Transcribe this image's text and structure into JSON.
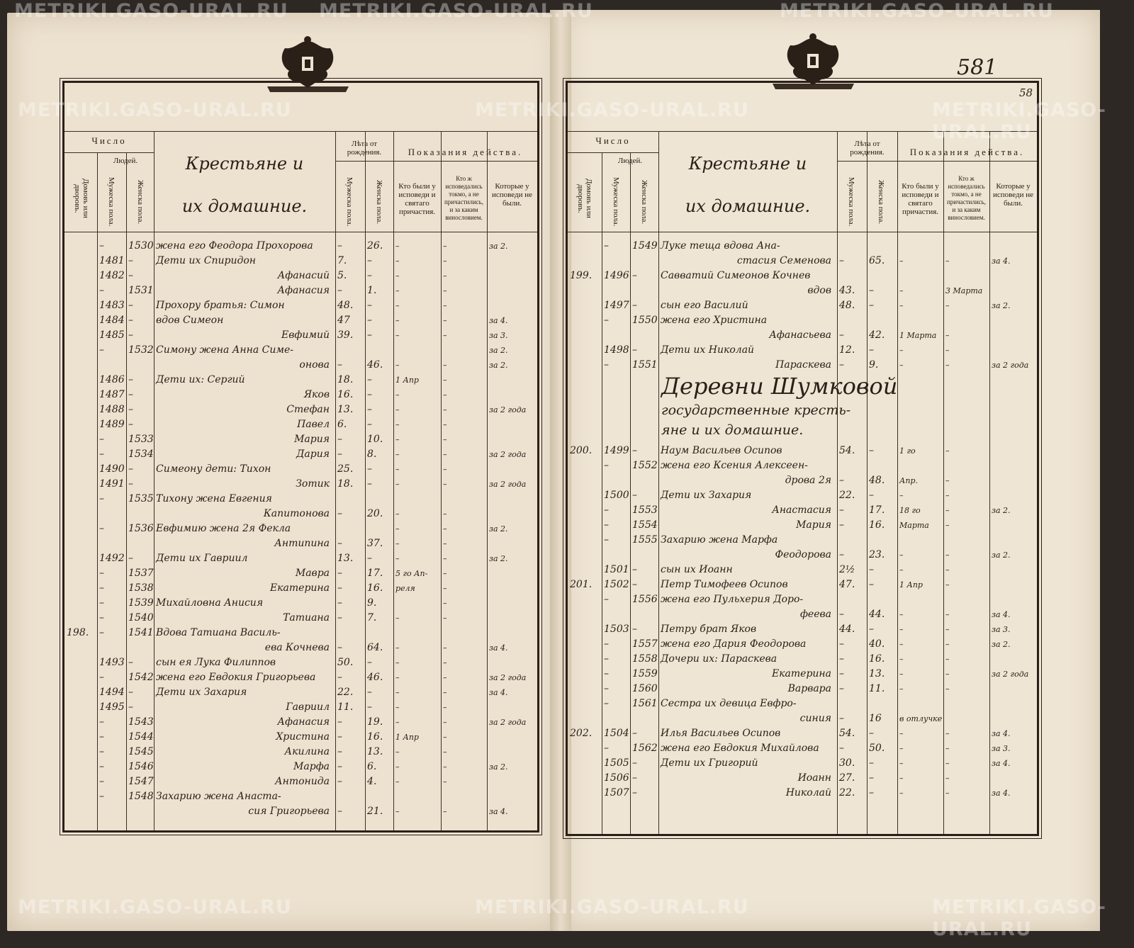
{
  "watermark": "METRIKI.GASO-URAL.RU",
  "page_number": "581",
  "page_number_small": "58",
  "header": {
    "chislo": "Число",
    "lyudey": "Людей.",
    "domov": "Домовъ или дворовъ.",
    "muzheska": "Мужеска пола.",
    "zhenska": "Женска пола.",
    "title_line1": "Крестьяне и",
    "title_line2": "их домашние.",
    "leta": "Лѣта от рождения.",
    "leta_m": "Мужеска пола.",
    "leta_f": "Женска пола.",
    "pokazania": "Показания действа.",
    "col1": "Кто были у исповеди и святаго причастия.",
    "col2": "Кто ж исповедались токмо, а не причастились, и за каким винословием.",
    "col3": "Которые у исповеди не были."
  },
  "left_rows": [
    [
      "",
      "–",
      "1530",
      "жена его Феодора Прохорова",
      "–",
      "26.",
      "–",
      "–",
      "за 2."
    ],
    [
      "",
      "1481",
      "–",
      "Дети их Спиридон",
      "7.",
      "–",
      "–",
      "–",
      ""
    ],
    [
      "",
      "1482",
      "–",
      "Афанасий",
      "5.",
      "–",
      "–",
      "–",
      ""
    ],
    [
      "",
      "–",
      "1531",
      "Афанасия",
      "–",
      "1.",
      "–",
      "–",
      ""
    ],
    [
      "",
      "1483",
      "–",
      "Прохору братья: Симон",
      "48.",
      "–",
      "–",
      "–",
      ""
    ],
    [
      "",
      "1484",
      "–",
      "вдов Симеон",
      "47",
      "–",
      "–",
      "–",
      "за 4."
    ],
    [
      "",
      "1485",
      "–",
      "Евфимий",
      "39.",
      "–",
      "–",
      "–",
      "за 3."
    ],
    [
      "",
      "–",
      "1532",
      "Симону жена Анна Симе-",
      "",
      "",
      "",
      "",
      "за 2."
    ],
    [
      "",
      "",
      "",
      "онова",
      "–",
      "46.",
      "–",
      "–",
      "за 2."
    ],
    [
      "",
      "1486",
      "–",
      "Дети их: Сергий",
      "18.",
      "–",
      "1 Апр",
      "–",
      ""
    ],
    [
      "",
      "1487",
      "–",
      "Яков",
      "16.",
      "–",
      "–",
      "–",
      ""
    ],
    [
      "",
      "1488",
      "–",
      "Стефан",
      "13.",
      "–",
      "–",
      "–",
      "за 2 года"
    ],
    [
      "",
      "1489",
      "–",
      "Павел",
      "6.",
      "–",
      "–",
      "–",
      ""
    ],
    [
      "",
      "–",
      "1533",
      "Мария",
      "–",
      "10.",
      "–",
      "–",
      ""
    ],
    [
      "",
      "–",
      "1534",
      "Дария",
      "–",
      "8.",
      "–",
      "–",
      "за 2 года"
    ],
    [
      "",
      "1490",
      "–",
      "Симеону дети: Тихон",
      "25.",
      "–",
      "–",
      "–",
      ""
    ],
    [
      "",
      "1491",
      "–",
      "Зотик",
      "18.",
      "–",
      "–",
      "–",
      "за 2 года"
    ],
    [
      "",
      "–",
      "1535",
      "Тихону жена Евгения",
      "",
      "",
      "",
      "",
      ""
    ],
    [
      "",
      "",
      "",
      "Капитонова",
      "–",
      "20.",
      "–",
      "–",
      ""
    ],
    [
      "",
      "–",
      "1536",
      "Евфимию жена 2я Фекла",
      "",
      "",
      "–",
      "–",
      "за 2."
    ],
    [
      "",
      "",
      "",
      "Антипина",
      "–",
      "37.",
      "–",
      "–",
      ""
    ],
    [
      "",
      "1492",
      "–",
      "Дети их Гавриил",
      "13.",
      "–",
      "–",
      "–",
      "за 2."
    ],
    [
      "",
      "–",
      "1537",
      "Мавра",
      "–",
      "17.",
      "5 го Ап-",
      "–",
      ""
    ],
    [
      "",
      "–",
      "1538",
      "Екатерина",
      "–",
      "16.",
      "реля",
      "–",
      ""
    ],
    [
      "",
      "–",
      "1539",
      "Михайловна Анисия",
      "–",
      "9.",
      "",
      "–",
      ""
    ],
    [
      "",
      "–",
      "1540",
      "Татиана",
      "–",
      "7.",
      "–",
      "–",
      ""
    ],
    [
      "198.",
      "–",
      "1541",
      "Вдова Татиана Василь-",
      "",
      "",
      "",
      "",
      ""
    ],
    [
      "",
      "",
      "",
      "ева Кочнева",
      "–",
      "64.",
      "–",
      "–",
      "за 4."
    ],
    [
      "",
      "1493",
      "–",
      "сын ея Лука Филиппов",
      "50.",
      "–",
      "–",
      "–",
      ""
    ],
    [
      "",
      "–",
      "1542",
      "жена его Евдокия Григорьева",
      "–",
      "46.",
      "–",
      "–",
      "за 2 года"
    ],
    [
      "",
      "1494",
      "–",
      "Дети их Захария",
      "22.",
      "–",
      "–",
      "–",
      "за 4."
    ],
    [
      "",
      "1495",
      "–",
      "Гавриил",
      "11.",
      "–",
      "–",
      "–",
      ""
    ],
    [
      "",
      "–",
      "1543",
      "Афанасия",
      "–",
      "19.",
      "–",
      "–",
      "за 2 года"
    ],
    [
      "",
      "–",
      "1544",
      "Христина",
      "–",
      "16.",
      "1 Апр",
      "–",
      ""
    ],
    [
      "",
      "–",
      "1545",
      "Акилина",
      "–",
      "13.",
      "–",
      "–",
      ""
    ],
    [
      "",
      "–",
      "1546",
      "Марфа",
      "–",
      "6.",
      "–",
      "–",
      "за 2."
    ],
    [
      "",
      "–",
      "1547",
      "Антонида",
      "–",
      "4.",
      "–",
      "–",
      ""
    ],
    [
      "",
      "–",
      "1548",
      "Захарию жена Анаста-",
      "",
      "",
      "",
      "",
      ""
    ],
    [
      "",
      "",
      "",
      "сия Григорьева",
      "–",
      "21.",
      "–",
      "–",
      "за 4."
    ]
  ],
  "right_rows_top": [
    [
      "",
      "–",
      "1549",
      "Луке теща вдова Ана-",
      "",
      "",
      "",
      "",
      ""
    ],
    [
      "",
      "",
      "",
      "стасия Семенова",
      "–",
      "65.",
      "–",
      "–",
      "за 4."
    ],
    [
      "199.",
      "1496",
      "–",
      "Савватий Симеонов Кочнев",
      "",
      "",
      "",
      "",
      ""
    ],
    [
      "",
      "",
      "",
      "вдов",
      "43.",
      "–",
      "–",
      "3 Марта",
      ""
    ],
    [
      "",
      "1497",
      "–",
      "сын его Василий",
      "48.",
      "–",
      "–",
      "–",
      "за 2."
    ],
    [
      "",
      "–",
      "1550",
      "жена его Христина",
      "",
      "",
      "",
      "",
      ""
    ],
    [
      "",
      "",
      "",
      "Афанасьева",
      "–",
      "42.",
      "1 Марта",
      "–",
      ""
    ],
    [
      "",
      "1498",
      "–",
      "Дети их Николай",
      "12.",
      "–",
      "–",
      "–",
      ""
    ],
    [
      "",
      "–",
      "1551",
      "Параскева",
      "–",
      "9.",
      "–",
      "–",
      "за 2 года"
    ]
  ],
  "section_heading": {
    "line1": "Деревни Шумковой",
    "line2": "государственные кресть-",
    "line3": "яне и их домашние."
  },
  "right_rows_bottom": [
    [
      "200.",
      "1499",
      "–",
      "Наум Васильев Осипов",
      "54.",
      "–",
      "1 го",
      "–",
      ""
    ],
    [
      "",
      "–",
      "1552",
      "жена его Ксения Алексеен-",
      "",
      "",
      "",
      "",
      " "
    ],
    [
      "",
      "",
      "",
      "дрова 2я",
      "–",
      "48.",
      "Апр.",
      "–",
      ""
    ],
    [
      "",
      "1500",
      "–",
      "Дети их Захария",
      "22.",
      "–",
      "–",
      "–",
      ""
    ],
    [
      "",
      "–",
      "1553",
      "Анастасия",
      "–",
      "17.",
      "18 го",
      "–",
      "за 2."
    ],
    [
      "",
      "–",
      "1554",
      "Мария",
      "–",
      "16.",
      "Марта",
      "–",
      ""
    ],
    [
      "",
      "–",
      "1555",
      "Захарию жена Марфа",
      "",
      "",
      "",
      "",
      ""
    ],
    [
      "",
      "",
      "",
      "Феодорова",
      "–",
      "23.",
      "–",
      "–",
      "за 2."
    ],
    [
      "",
      "1501",
      "–",
      "сын их Иоанн",
      "2½",
      "–",
      "–",
      "–",
      ""
    ],
    [
      "201.",
      "1502",
      "–",
      "Петр Тимофеев Осипов",
      "47.",
      "–",
      "1 Апр",
      "–",
      ""
    ],
    [
      "",
      "–",
      "1556",
      "жена его Пульхерия Доро-",
      "",
      "",
      "",
      "",
      ""
    ],
    [
      "",
      "",
      "",
      "феева",
      "–",
      "44.",
      "–",
      "–",
      "за 4."
    ],
    [
      "",
      "1503",
      "–",
      "Петру брат Яков",
      "44.",
      "–",
      "–",
      "–",
      "за 3."
    ],
    [
      "",
      "–",
      "1557",
      "жена его Дария Феодорова",
      "–",
      "40.",
      "–",
      "–",
      "за 2."
    ],
    [
      "",
      "–",
      "1558",
      "Дочери их: Параскева",
      "–",
      "16.",
      "–",
      "–",
      ""
    ],
    [
      "",
      "–",
      "1559",
      "Екатерина",
      "–",
      "13.",
      "–",
      "–",
      "за 2 года"
    ],
    [
      "",
      "–",
      "1560",
      "Варвара",
      "–",
      "11.",
      "–",
      "–",
      ""
    ],
    [
      "",
      "–",
      "1561",
      "Сестра их девица Евфро-",
      "",
      "",
      "",
      "",
      ""
    ],
    [
      "",
      "",
      "",
      "синия",
      "–",
      "16",
      "в отлучке",
      "",
      ""
    ],
    [
      "202.",
      "1504",
      "–",
      "Илья Васильев Осипов",
      "54.",
      "–",
      "–",
      "–",
      "за 4."
    ],
    [
      "",
      "–",
      "1562",
      "жена его Евдокия Михайлова",
      "–",
      "50.",
      "–",
      "–",
      "за 3."
    ],
    [
      "",
      "1505",
      "–",
      "Дети их Григорий",
      "30.",
      "–",
      "–",
      "–",
      "за 4."
    ],
    [
      "",
      "1506",
      "–",
      "Иоанн",
      "27.",
      "–",
      "–",
      "–",
      ""
    ],
    [
      "",
      "1507",
      "–",
      "Николай",
      "22.",
      "–",
      "–",
      "–",
      "за 4."
    ]
  ],
  "colors": {
    "paper": "#ede2d0",
    "ink": "#2a2018",
    "background": "#2d2824"
  }
}
